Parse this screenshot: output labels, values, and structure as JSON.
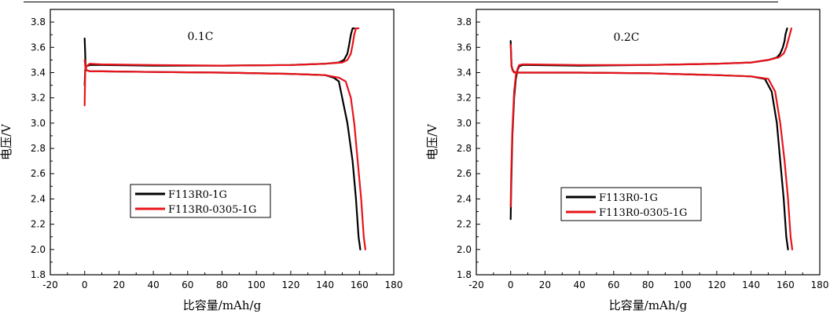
{
  "chart_data": [
    {
      "type": "line",
      "annotation": "0.1C",
      "xlabel": "比容量/mAh/g",
      "ylabel": "电压/V",
      "xlim": [
        -20,
        180
      ],
      "ylim": [
        1.8,
        3.9
      ],
      "xticks": [
        "-20",
        "0",
        "20",
        "40",
        "60",
        "80",
        "100",
        "120",
        "140",
        "160",
        "180"
      ],
      "yticks": [
        "1.8",
        "2.0",
        "2.2",
        "2.4",
        "2.6",
        "2.8",
        "3.0",
        "3.2",
        "3.4",
        "3.6",
        "3.8"
      ],
      "legend_position": "lower-left",
      "series": [
        {
          "name": "F113R0-1G",
          "color": "#000000",
          "charge": {
            "x": [
              0,
              0.3,
              1,
              3,
              10,
              40,
              80,
              120,
              140,
              148,
              151,
              153,
              154,
              155,
              156,
              157
            ],
            "y": [
              3.3,
              3.42,
              3.45,
              3.46,
              3.46,
              3.455,
              3.455,
              3.46,
              3.47,
              3.48,
              3.5,
              3.55,
              3.62,
              3.7,
              3.75,
              3.75
            ]
          },
          "discharge": {
            "x": [
              0,
              0.3,
              0.5,
              1,
              3,
              10,
              40,
              80,
              120,
              140,
              145,
              148,
              150,
              153,
              156,
              158,
              159.5,
              160.5
            ],
            "y": [
              3.67,
              3.55,
              3.45,
              3.42,
              3.41,
              3.41,
              3.405,
              3.4,
              3.39,
              3.38,
              3.36,
              3.33,
              3.2,
              3.0,
              2.7,
              2.4,
              2.1,
              2.0
            ]
          }
        },
        {
          "name": "F113R0-0305-1G",
          "color": "#e8141b",
          "charge": {
            "x": [
              0,
              0.3,
              1,
              3,
              10,
              40,
              80,
              120,
              140,
              150,
              153,
              155,
              156,
              157,
              158,
              159.5
            ],
            "y": [
              3.14,
              3.4,
              3.45,
              3.47,
              3.465,
              3.46,
              3.455,
              3.46,
              3.47,
              3.48,
              3.5,
              3.55,
              3.62,
              3.7,
              3.75,
              3.75
            ]
          },
          "discharge": {
            "x": [
              0,
              0.5,
              1,
              3,
              10,
              40,
              80,
              120,
              140,
              148,
              152,
              155,
              157,
              159,
              161,
              162.5,
              163.5
            ],
            "y": [
              3.5,
              3.43,
              3.42,
              3.41,
              3.41,
              3.405,
              3.4,
              3.39,
              3.38,
              3.36,
              3.33,
              3.2,
              3.0,
              2.7,
              2.4,
              2.1,
              2.0
            ]
          }
        }
      ]
    },
    {
      "type": "line",
      "annotation": "0.2C",
      "xlabel": "比容量/mAh/g",
      "ylabel": "电压/V",
      "xlim": [
        -20,
        180
      ],
      "ylim": [
        1.8,
        3.9
      ],
      "xticks": [
        "-20",
        "0",
        "20",
        "40",
        "60",
        "80",
        "100",
        "120",
        "140",
        "160",
        "180"
      ],
      "yticks": [
        "1.8",
        "2.0",
        "2.2",
        "2.4",
        "2.6",
        "2.8",
        "3.0",
        "3.2",
        "3.4",
        "3.6",
        "3.8"
      ],
      "legend_position": "lower-left",
      "series": [
        {
          "name": "F113R0-1G",
          "color": "#000000",
          "charge": {
            "x": [
              0,
              0.3,
              1,
              2,
              3,
              4,
              5,
              7,
              10,
              40,
              80,
              120,
              140,
              150,
              155,
              157,
              158.5,
              159.5,
              160,
              161
            ],
            "y": [
              2.24,
              2.5,
              2.9,
              3.2,
              3.35,
              3.42,
              3.45,
              3.46,
              3.46,
              3.455,
              3.46,
              3.47,
              3.48,
              3.5,
              3.52,
              3.55,
              3.6,
              3.65,
              3.7,
              3.75
            ]
          },
          "discharge": {
            "x": [
              0,
              0.5,
              1.5,
              3,
              5,
              10,
              40,
              80,
              120,
              140,
              148,
              152,
              155,
              157,
              159,
              160.5,
              161.5
            ],
            "y": [
              3.65,
              3.45,
              3.41,
              3.4,
              3.4,
              3.4,
              3.4,
              3.395,
              3.38,
              3.37,
              3.35,
              3.25,
              3.0,
              2.7,
              2.4,
              2.1,
              2.0
            ]
          }
        },
        {
          "name": "F113R0-0305-1G",
          "color": "#e8141b",
          "charge": {
            "x": [
              0,
              0.3,
              1,
              2,
              3,
              4,
              5,
              7,
              10,
              40,
              80,
              120,
              140,
              150,
              156,
              159,
              160.5,
              161.5,
              162.5,
              163.5
            ],
            "y": [
              2.34,
              2.6,
              2.95,
              3.25,
              3.38,
              3.43,
              3.46,
              3.465,
              3.465,
              3.46,
              3.46,
              3.47,
              3.48,
              3.5,
              3.52,
              3.55,
              3.6,
              3.65,
              3.7,
              3.75
            ]
          },
          "discharge": {
            "x": [
              0,
              0.5,
              1,
              2,
              3,
              5,
              10,
              40,
              80,
              120,
              140,
              150,
              154,
              157,
              159.5,
              161.5,
              163,
              164
            ],
            "y": [
              3.62,
              3.46,
              3.42,
              3.4,
              3.4,
              3.4,
              3.4,
              3.4,
              3.395,
              3.38,
              3.37,
              3.35,
              3.25,
              3.0,
              2.7,
              2.4,
              2.1,
              2.0
            ]
          }
        }
      ]
    }
  ]
}
